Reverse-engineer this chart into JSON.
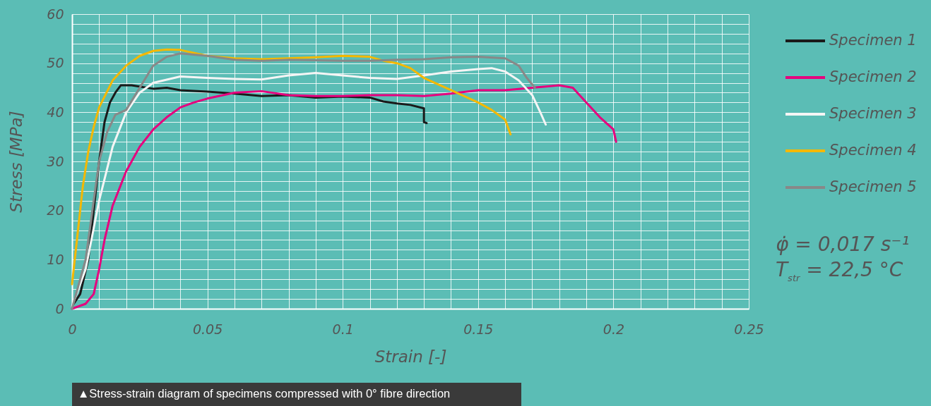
{
  "chart_data": {
    "type": "line",
    "xlabel": "Strain [-]",
    "ylabel": "Stress [MPa]",
    "legend": "right",
    "grid": true,
    "xlim": [
      0,
      0.25
    ],
    "ylim": [
      0,
      60
    ],
    "xticks": [
      0,
      {
        "value": 0.01,
        "label": null
      },
      {
        "value": 0.02,
        "label": null
      },
      {
        "value": 0.03,
        "label": null
      },
      {
        "value": 0.04,
        "label": null
      },
      0.05,
      {
        "value": 0.06,
        "label": null
      },
      {
        "value": 0.07,
        "label": null
      },
      {
        "value": 0.08,
        "label": null
      },
      {
        "value": 0.09,
        "label": null
      },
      0.1,
      {
        "value": 0.11,
        "label": null
      },
      {
        "value": 0.12,
        "label": null
      },
      {
        "value": 0.13,
        "label": null
      },
      {
        "value": 0.14,
        "label": null
      },
      0.15,
      {
        "value": 0.16,
        "label": null
      },
      {
        "value": 0.17,
        "label": null
      },
      {
        "value": 0.18,
        "label": null
      },
      {
        "value": 0.19,
        "label": null
      },
      0.2,
      {
        "value": 0.21,
        "label": null
      },
      {
        "value": 0.22,
        "label": null
      },
      {
        "value": 0.23,
        "label": null
      },
      {
        "value": 0.24,
        "label": null
      },
      0.25
    ],
    "yticks": [
      0,
      {
        "value": 2,
        "label": null
      },
      {
        "value": 4,
        "label": null
      },
      {
        "value": 6,
        "label": null
      },
      {
        "value": 8,
        "label": null
      },
      10,
      {
        "value": 12,
        "label": null
      },
      {
        "value": 14,
        "label": null
      },
      {
        "value": 16,
        "label": null
      },
      {
        "value": 18,
        "label": null
      },
      20,
      {
        "value": 22,
        "label": null
      },
      {
        "value": 24,
        "label": null
      },
      {
        "value": 26,
        "label": null
      },
      {
        "value": 28,
        "label": null
      },
      30,
      {
        "value": 32,
        "label": null
      },
      {
        "value": 34,
        "label": null
      },
      {
        "value": 36,
        "label": null
      },
      {
        "value": 38,
        "label": null
      },
      40,
      {
        "value": 42,
        "label": null
      },
      {
        "value": 44,
        "label": null
      },
      {
        "value": 46,
        "label": null
      },
      {
        "value": 48,
        "label": null
      },
      50,
      {
        "value": 52,
        "label": null
      },
      {
        "value": 54,
        "label": null
      },
      {
        "value": 56,
        "label": null
      },
      {
        "value": 58,
        "label": null
      },
      60
    ],
    "annotations": [
      "φ̇ = 0,017 s⁻¹",
      "T$_{str}$ = 22,5 °C",
      "▲Stress-strain diagram of specimens compressed with 0° fibre direction"
    ],
    "series": [
      {
        "name": "Specimen 1",
        "color": "#1a1a1a",
        "x": [
          0,
          0.003,
          0.006,
          0.008,
          0.01,
          0.012,
          0.014,
          0.016,
          0.018,
          0.022,
          0.03,
          0.035,
          0.04,
          0.05,
          0.06,
          0.07,
          0.08,
          0.09,
          0.1,
          0.11,
          0.115,
          0.12,
          0.125,
          0.13,
          0.13,
          0.131
        ],
        "values": [
          0.5,
          3,
          10,
          20,
          30,
          38,
          42,
          44,
          45.5,
          45.5,
          44.8,
          45,
          44.5,
          44.2,
          43.8,
          43.3,
          43.5,
          43,
          43.2,
          43,
          42.2,
          41.8,
          41.5,
          40.8,
          38,
          37.8
        ]
      },
      {
        "name": "Specimen 2",
        "color": "#e6007e",
        "x": [
          0,
          0.005,
          0.008,
          0.01,
          0.012,
          0.015,
          0.02,
          0.025,
          0.03,
          0.035,
          0.04,
          0.045,
          0.05,
          0.06,
          0.07,
          0.08,
          0.09,
          0.1,
          0.11,
          0.12,
          0.13,
          0.14,
          0.15,
          0.16,
          0.17,
          0.18,
          0.185,
          0.19,
          0.195,
          0.2,
          0.201
        ],
        "values": [
          0,
          1,
          3,
          8,
          14,
          21,
          28,
          33,
          36.5,
          39,
          41,
          42,
          42.8,
          44,
          44.3,
          43.5,
          43.3,
          43.3,
          43.5,
          43.5,
          43.3,
          43.8,
          44.5,
          44.5,
          45,
          45.5,
          45,
          42,
          39,
          36.5,
          34
        ]
      },
      {
        "name": "Specimen 3",
        "color": "#f5f5f5",
        "x": [
          0,
          0.005,
          0.01,
          0.015,
          0.02,
          0.025,
          0.03,
          0.04,
          0.05,
          0.06,
          0.07,
          0.08,
          0.09,
          0.1,
          0.11,
          0.12,
          0.13,
          0.14,
          0.15,
          0.155,
          0.16,
          0.165,
          0.17,
          0.173,
          0.175
        ],
        "values": [
          0.5,
          8,
          22,
          33,
          40,
          44,
          46,
          47.3,
          47,
          46.8,
          46.7,
          47.5,
          48,
          47.5,
          47,
          46.8,
          47.5,
          48.3,
          48.8,
          49,
          48.3,
          46.5,
          43.5,
          40,
          37.5
        ]
      },
      {
        "name": "Specimen 4",
        "color": "#f5b800",
        "x": [
          0,
          0.002,
          0.004,
          0.006,
          0.008,
          0.01,
          0.015,
          0.02,
          0.025,
          0.03,
          0.035,
          0.04,
          0.05,
          0.06,
          0.07,
          0.08,
          0.09,
          0.1,
          0.11,
          0.115,
          0.12,
          0.125,
          0.13,
          0.14,
          0.15,
          0.155,
          0.16,
          0.162
        ],
        "values": [
          5,
          15,
          25,
          32,
          37,
          41,
          46.5,
          49.5,
          51.5,
          52.5,
          52.8,
          52.7,
          51.5,
          51,
          50.8,
          51,
          51.2,
          51.5,
          51.3,
          50.5,
          50,
          49,
          47,
          44.5,
          42,
          40.5,
          38.5,
          35.5
        ]
      },
      {
        "name": "Specimen 5",
        "color": "#888888",
        "x": [
          0,
          0.005,
          0.008,
          0.01,
          0.013,
          0.016,
          0.02,
          0.025,
          0.03,
          0.035,
          0.04,
          0.05,
          0.06,
          0.07,
          0.08,
          0.1,
          0.11,
          0.12,
          0.13,
          0.14,
          0.15,
          0.16,
          0.165,
          0.168,
          0.171
        ],
        "values": [
          0,
          10,
          22,
          30,
          36,
          39.5,
          40.5,
          45,
          49.5,
          51.3,
          52,
          51.5,
          50.7,
          50.5,
          50.7,
          50.5,
          50.5,
          50.7,
          50.8,
          51.2,
          51.3,
          51,
          49.5,
          47,
          45
        ]
      }
    ]
  }
}
